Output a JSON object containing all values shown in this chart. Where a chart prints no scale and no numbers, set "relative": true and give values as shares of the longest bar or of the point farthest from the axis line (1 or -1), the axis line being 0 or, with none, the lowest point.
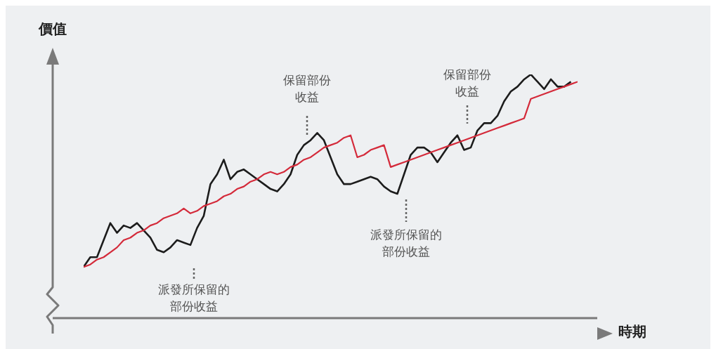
{
  "chart_data": {
    "type": "line",
    "relative": true,
    "xlabel": "時期",
    "ylabel": "價值",
    "categories": [
      null,
      null,
      null,
      null,
      null,
      null,
      null,
      null,
      null,
      null,
      null,
      null,
      null,
      null,
      null,
      null,
      null,
      null,
      null,
      null,
      null,
      null,
      null,
      null,
      null,
      null,
      null,
      null,
      null,
      null,
      null,
      null,
      null,
      null,
      null,
      null,
      null,
      null,
      null,
      null,
      null,
      null,
      null,
      null,
      null,
      null,
      null,
      null,
      null,
      null,
      null,
      null,
      null,
      null,
      null,
      null,
      null,
      null,
      null,
      null,
      null,
      null,
      null,
      null,
      null,
      null,
      null,
      null,
      null,
      null,
      null,
      null,
      null,
      null,
      null
    ],
    "series": [
      {
        "color": "#1c1c1c",
        "values": [
          0.21,
          0.25,
          0.25,
          0.32,
          0.39,
          0.35,
          0.38,
          0.37,
          0.39,
          0.36,
          0.33,
          0.28,
          0.27,
          0.29,
          0.32,
          0.31,
          0.3,
          0.37,
          0.42,
          0.55,
          0.59,
          0.65,
          0.57,
          0.6,
          0.61,
          0.59,
          0.57,
          0.55,
          0.53,
          0.52,
          0.55,
          0.59,
          0.67,
          0.71,
          0.73,
          0.76,
          0.73,
          0.66,
          0.59,
          0.55,
          0.55,
          0.56,
          0.57,
          0.58,
          0.57,
          0.54,
          0.52,
          0.51,
          0.59,
          0.67,
          0.7,
          0.7,
          0.68,
          0.64,
          0.68,
          0.72,
          0.75,
          0.69,
          0.7,
          0.77,
          0.8,
          0.8,
          0.83,
          0.89,
          0.93,
          0.95,
          0.98,
          1,
          0.97,
          0.94,
          0.98,
          0.95,
          0.95,
          0.97,
          null
        ]
      },
      {
        "color": "#d42a3a",
        "values": [
          0.21,
          0.22,
          0.24,
          0.25,
          0.27,
          0.29,
          0.32,
          0.33,
          0.35,
          0.36,
          0.38,
          0.39,
          0.41,
          0.42,
          0.43,
          0.45,
          0.43,
          0.44,
          0.46,
          0.47,
          0.48,
          0.5,
          0.51,
          0.53,
          0.54,
          0.56,
          0.57,
          0.59,
          0.6,
          0.59,
          0.6,
          0.62,
          0.63,
          0.65,
          0.66,
          0.68,
          0.7,
          0.71,
          0.72,
          0.74,
          0.75,
          0.66,
          0.67,
          0.69,
          0.7,
          0.71,
          0.62,
          0.63,
          0.64,
          0.65,
          0.66,
          0.67,
          0.68,
          0.69,
          0.7,
          0.71,
          0.72,
          0.73,
          0.74,
          0.75,
          0.76,
          0.77,
          0.78,
          0.79,
          0.8,
          0.81,
          0.82,
          0.9,
          0.91,
          0.92,
          0.93,
          0.94,
          0.95,
          0.96,
          0.97
        ]
      }
    ],
    "annotations": [
      "派發所保留的部份收益",
      "保留部份收益",
      "派發所保留的部份收益",
      "保留部份收益"
    ]
  }
}
